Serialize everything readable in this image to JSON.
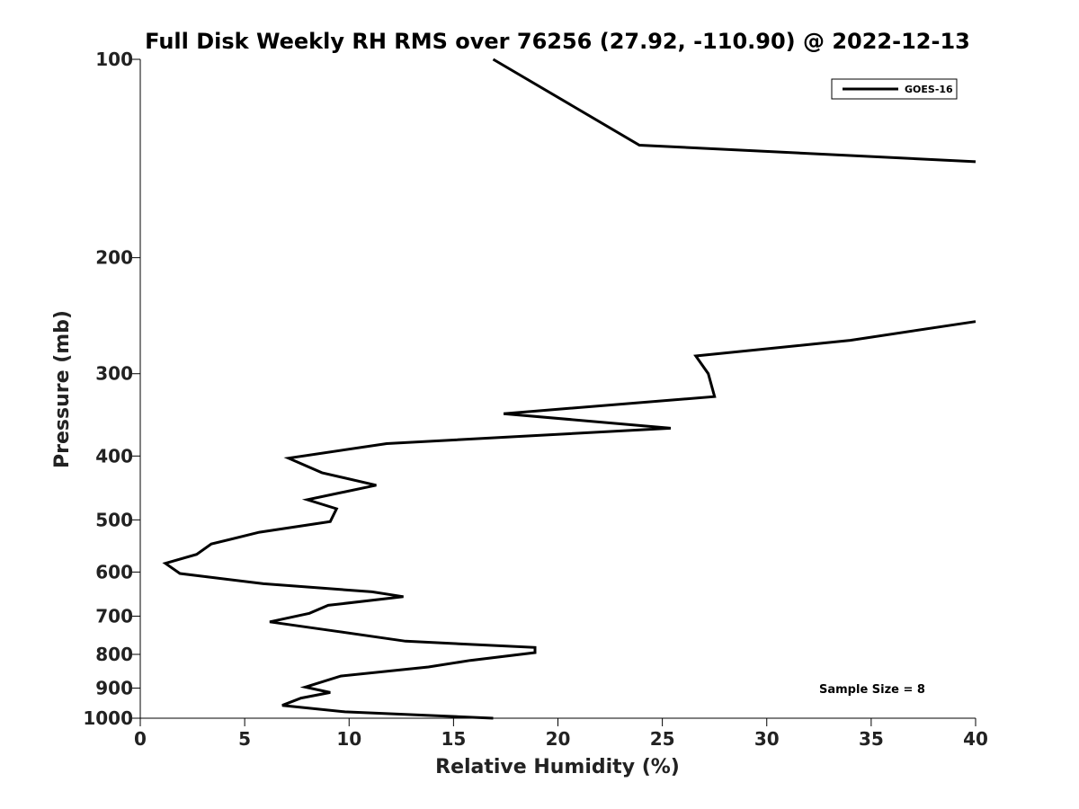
{
  "chart_data": {
    "type": "line",
    "title": "Full Disk Weekly RH RMS over 76256 (27.92, -110.90) @ 2022-12-13",
    "xlabel": "Relative Humidity (%)",
    "ylabel": "Pressure (mb)",
    "xlim": [
      0,
      40
    ],
    "ylim": [
      1000,
      100
    ],
    "y_scale": "log",
    "x_ticks": [
      0,
      5,
      10,
      15,
      20,
      25,
      30,
      35,
      40
    ],
    "y_ticks": [
      100,
      200,
      300,
      400,
      500,
      600,
      700,
      800,
      900,
      1000
    ],
    "grid": false,
    "legend": "top-right",
    "series": [
      {
        "name": "GOES-16",
        "color": "#000000",
        "segments": [
          [
            {
              "x": 16.9,
              "y": 100
            },
            {
              "x": 23.9,
              "y": 135
            },
            {
              "x": 40.0,
              "y": 143
            }
          ],
          [
            {
              "x": 40.0,
              "y": 250
            },
            {
              "x": 34.0,
              "y": 267
            },
            {
              "x": 26.6,
              "y": 282
            },
            {
              "x": 27.2,
              "y": 300
            },
            {
              "x": 27.5,
              "y": 325
            },
            {
              "x": 17.4,
              "y": 345
            },
            {
              "x": 25.4,
              "y": 363
            },
            {
              "x": 11.8,
              "y": 383
            },
            {
              "x": 7.1,
              "y": 403
            },
            {
              "x": 8.7,
              "y": 424
            },
            {
              "x": 11.3,
              "y": 443
            },
            {
              "x": 8.0,
              "y": 466
            },
            {
              "x": 9.4,
              "y": 481
            },
            {
              "x": 9.1,
              "y": 503
            },
            {
              "x": 5.7,
              "y": 522
            },
            {
              "x": 3.4,
              "y": 544
            },
            {
              "x": 2.7,
              "y": 564
            },
            {
              "x": 1.2,
              "y": 582
            },
            {
              "x": 1.9,
              "y": 603
            },
            {
              "x": 5.9,
              "y": 625
            },
            {
              "x": 11.1,
              "y": 643
            },
            {
              "x": 12.6,
              "y": 654
            },
            {
              "x": 9.0,
              "y": 674
            },
            {
              "x": 8.1,
              "y": 693
            },
            {
              "x": 6.2,
              "y": 714
            },
            {
              "x": 9.4,
              "y": 738
            },
            {
              "x": 12.7,
              "y": 764
            },
            {
              "x": 18.9,
              "y": 781
            },
            {
              "x": 18.9,
              "y": 795
            },
            {
              "x": 15.8,
              "y": 817
            },
            {
              "x": 13.8,
              "y": 836
            },
            {
              "x": 9.6,
              "y": 863
            },
            {
              "x": 7.9,
              "y": 897
            },
            {
              "x": 9.1,
              "y": 914
            },
            {
              "x": 7.7,
              "y": 932
            },
            {
              "x": 6.8,
              "y": 956
            },
            {
              "x": 9.8,
              "y": 978
            },
            {
              "x": 16.9,
              "y": 1000
            }
          ]
        ]
      }
    ],
    "annotations": [
      "Sample Size = 8"
    ]
  }
}
